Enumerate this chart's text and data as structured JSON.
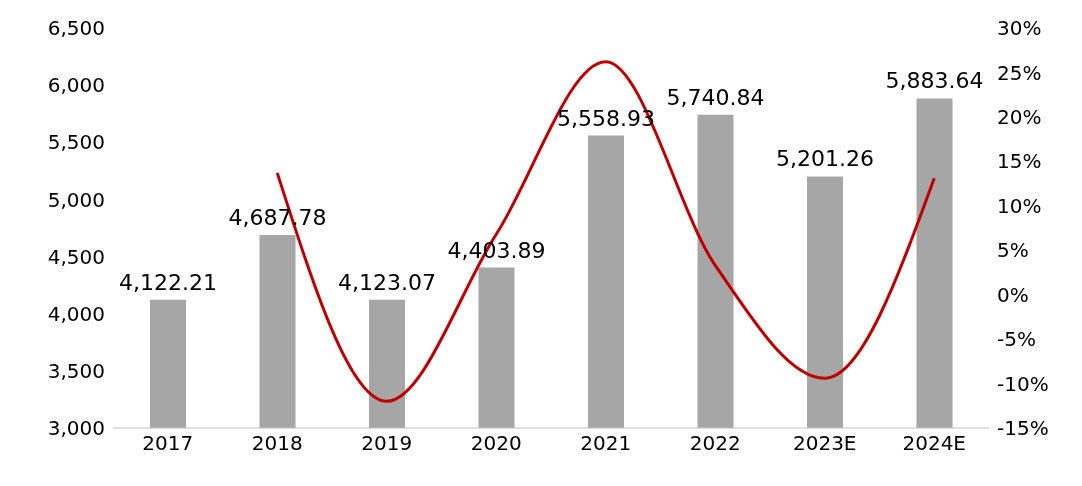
{
  "chart_data": {
    "type": "bar",
    "categories": [
      "2017",
      "2018",
      "2019",
      "2020",
      "2021",
      "2022",
      "2023E",
      "2024E"
    ],
    "series": [
      {
        "color": "#a6a6a6",
        "values": [
          4122.21,
          4687.78,
          4123.07,
          4403.89,
          5558.93,
          5740.84,
          5201.26,
          5883.64
        ],
        "value_labels": [
          "4,122.21",
          "4,687.78",
          "4,123.07",
          "4,403.89",
          "5,558.93",
          "5,740.84",
          "5,201.26",
          "5,883.64"
        ]
      },
      {
        "type": "line",
        "axis": "y2",
        "color": "#c00000",
        "values": [
          null,
          13.7,
          -12.0,
          6.8,
          26.2,
          3.3,
          -9.4,
          13.1
        ]
      }
    ],
    "ylim": [
      3000,
      6500
    ],
    "yticks": [
      {
        "value": 3000,
        "label": "3,000"
      },
      {
        "value": 3500,
        "label": "3,500"
      },
      {
        "value": 4000,
        "label": "4,000"
      },
      {
        "value": 4500,
        "label": "4,500"
      },
      {
        "value": 5000,
        "label": "5,000"
      },
      {
        "value": 5500,
        "label": "5,500"
      },
      {
        "value": 6000,
        "label": "6,000"
      },
      {
        "value": 6500,
        "label": "6,500"
      }
    ],
    "y2lim": [
      -15,
      30
    ],
    "y2ticks": [
      {
        "value": -15,
        "label": "-15%"
      },
      {
        "value": -10,
        "label": "-10%"
      },
      {
        "value": -5,
        "label": "-5%"
      },
      {
        "value": 0,
        "label": "0%"
      },
      {
        "value": 5,
        "label": "5%"
      },
      {
        "value": 10,
        "label": "10%"
      },
      {
        "value": 15,
        "label": "15%"
      },
      {
        "value": 20,
        "label": "20%"
      },
      {
        "value": 25,
        "label": "25%"
      },
      {
        "value": 30,
        "label": "30%"
      }
    ],
    "grid": false,
    "legend": false,
    "marker": "none",
    "line_style": "solid"
  }
}
